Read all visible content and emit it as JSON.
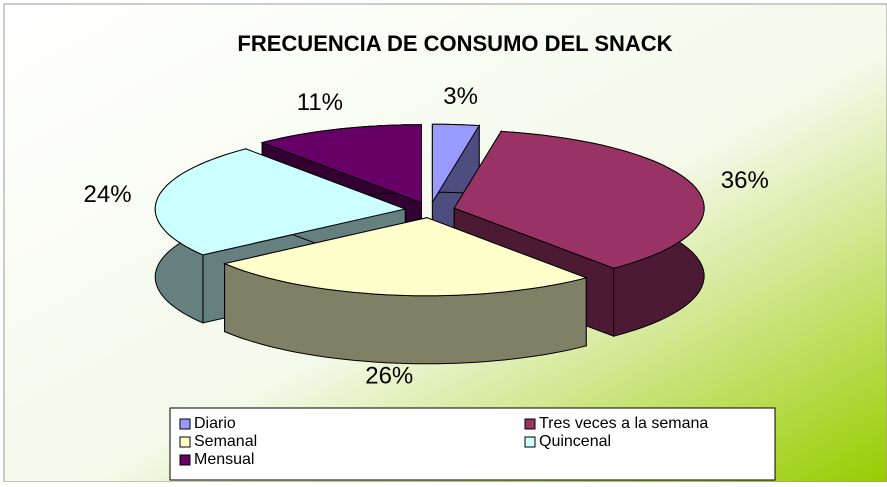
{
  "chart_data": {
    "type": "pie3d",
    "title": "FRECUENCIA DE CONSUMO DEL SNACK",
    "categories": [
      "Diario",
      "Tres veces a la semana",
      "Semanal",
      "Quincenal",
      "Mensual"
    ],
    "values": [
      3,
      36,
      26,
      24,
      11
    ],
    "value_labels": [
      "3%",
      "36%",
      "26%",
      "24%",
      "11%"
    ],
    "colors": [
      "#9999ff",
      "#993366",
      "#ffffcc",
      "#ccffff",
      "#660066"
    ],
    "legend": "bottom"
  }
}
